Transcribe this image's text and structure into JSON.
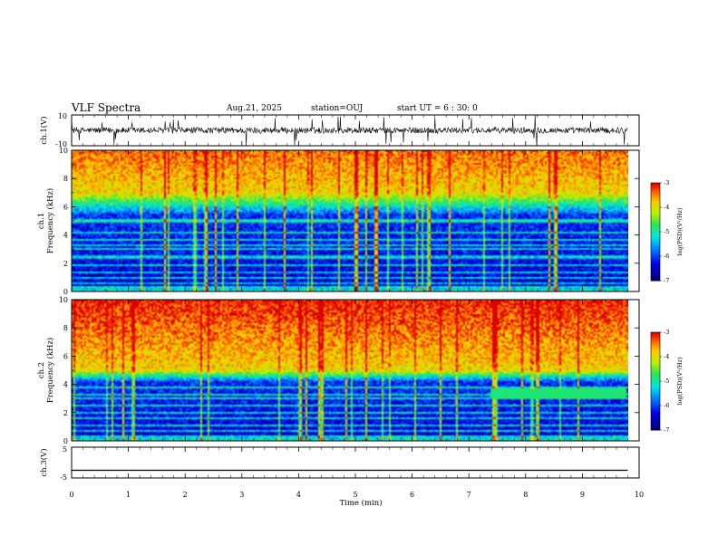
{
  "header": {
    "title": "VLF Spectra",
    "date": "Aug.21, 2025",
    "station": "station=OUJ",
    "start_ut": "start UT = 6 : 30: 0"
  },
  "chart_data": [
    {
      "type": "line",
      "panel": "ch.1 waveform",
      "ylabel": "ch.1(V)",
      "ylim": [
        -10,
        10
      ],
      "y_ticks": [
        "10",
        "-10"
      ],
      "xlim": [
        0,
        10
      ],
      "series": [
        {
          "baseline": 0,
          "noise_amplitude": 2,
          "spike_amplitude": 10,
          "end_x": 9.8
        }
      ]
    },
    {
      "type": "heatmap",
      "panel": "ch.1 spectrogram",
      "ylabel": "ch.1\nFrequency (kHz)",
      "ylim": [
        0,
        10
      ],
      "y_ticks": [
        "0",
        "2",
        "4",
        "6",
        "8",
        "10"
      ],
      "xlim": [
        0,
        10
      ],
      "end_x": 9.8,
      "colorbar": {
        "label": "log(PSD)(V²/Hz)",
        "range": [
          -7,
          -3
        ],
        "ticks": [
          "-3",
          "-4",
          "-5",
          "-6",
          "-7"
        ]
      },
      "features": {
        "high_band_above_kHz": 7,
        "transition_kHz": 6,
        "quiet_band_kHz": [
          0.3,
          5.5
        ],
        "harmonic_lines_kHz": [
          0.5,
          0.9,
          1.3,
          1.8,
          2.4,
          3.0,
          3.3,
          3.6,
          4.2,
          5.0
        ]
      }
    },
    {
      "type": "heatmap",
      "panel": "ch.2 spectrogram",
      "ylabel": "ch.2\nFrequency (kHz)",
      "ylim": [
        0,
        10
      ],
      "y_ticks": [
        "0",
        "2",
        "4",
        "6",
        "8",
        "10"
      ],
      "xlim": [
        0,
        10
      ],
      "end_x": 9.8,
      "colorbar": {
        "label": "log(PSD)(V²/Hz)",
        "range": [
          -7,
          -3
        ],
        "ticks": [
          "-3",
          "-4",
          "-5",
          "-6",
          "-7"
        ]
      },
      "features": {
        "high_band_above_kHz": 5,
        "transition_kHz": 4.5,
        "quiet_band_kHz": [
          0.3,
          4.2
        ],
        "harmonic_lines_kHz": [
          0.6,
          1.0,
          1.5,
          2.0,
          2.5,
          3.0,
          3.3,
          3.8
        ],
        "tone": {
          "start_min": 7.4,
          "end_min": 9.8,
          "freq_kHz": 3.3
        }
      }
    },
    {
      "type": "line",
      "panel": "ch.3 waveform",
      "ylabel": "ch.3(V)",
      "ylim": [
        -5,
        5
      ],
      "y_ticks": [
        "5",
        "-5"
      ],
      "xlim": [
        0,
        10
      ],
      "series": [
        {
          "value": -2.5,
          "end_x": 9.8
        }
      ]
    }
  ],
  "x_axis": {
    "label": "Time (min)",
    "ticks": [
      "0",
      "1",
      "2",
      "3",
      "4",
      "5",
      "6",
      "7",
      "8",
      "9",
      "10"
    ]
  }
}
